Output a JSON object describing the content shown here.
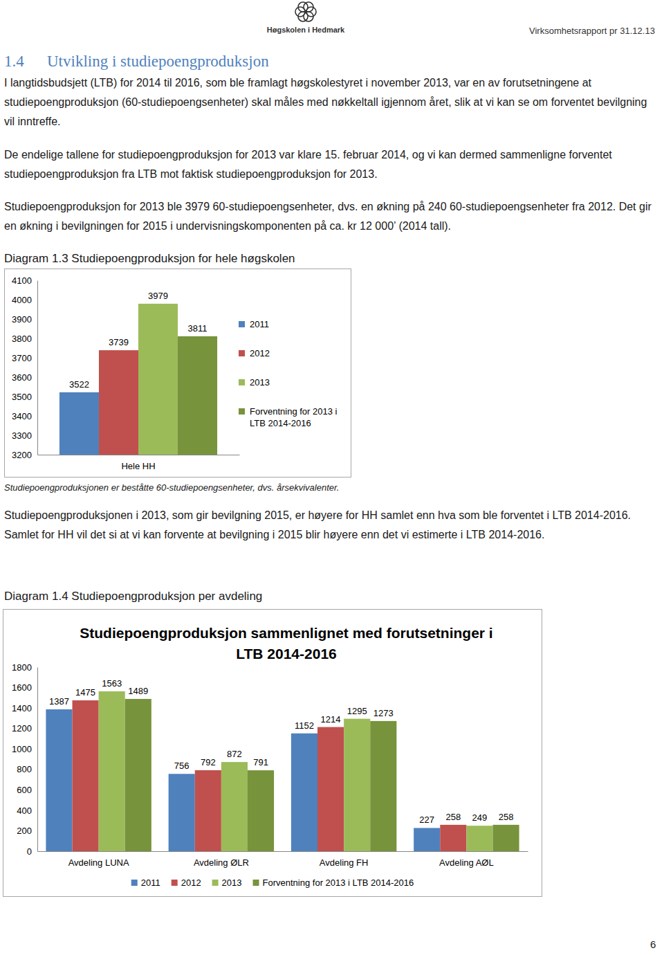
{
  "document": {
    "header": {
      "organization": "Høgskolen i Hedmark",
      "report": "Virksomhetsrapport pr 31.12.13"
    },
    "section": {
      "number": "1.4",
      "title": "Utvikling i studiepoengproduksjon"
    },
    "paragraphs": [
      "I langtidsbudsjett (LTB) for 2014 til 2016, som ble framlagt høgskolestyret i november 2013, var en av forutsetningene at studiepoengproduksjon (60-studiepoengsenheter) skal måles med nøkkeltall igjennom året, slik at vi kan se om forventet bevilgning vil inntreffe.",
      "De endelige tallene for studiepoengproduksjon for 2013 var klare 15. februar 2014, og vi kan dermed sammenligne forventet studiepoengproduksjon fra LTB mot faktisk studiepoengproduksjon for 2013.",
      "Studiepoengproduksjon for 2013 ble 3979 60-studiepoengsenheter, dvs. en økning på 240 60-studiepoengsenheter fra 2012. Det gir en økning i bevilgningen for 2015 i undervisningskomponenten på ca. kr 12 000’ (2014 tall).",
      "Studiepoengproduksjonen i 2013, som gir bevilgning 2015, er høyere for HH samlet enn hva som ble forventet i LTB 2014-2016. Samlet for HH vil det si at vi kan forvente at bevilgning i 2015 blir høyere enn det vi estimerte i LTB 2014-2016."
    ],
    "captions": [
      "Diagram 1.3 Studiepoengproduksjon for hele høgskolen",
      "Diagram 1.4 Studiepoengproduksjon per avdeling"
    ],
    "note": "Studiepoengproduksjonen er beståtte 60-studiepoengsenheter, dvs. årsekvivalenter.",
    "page_number": "6"
  },
  "chart_data": [
    {
      "type": "bar",
      "categories": [
        "Hele HH"
      ],
      "series": [
        {
          "name": "2011",
          "color": "#4f81bd",
          "values": [
            3522
          ]
        },
        {
          "name": "2012",
          "color": "#c0504d",
          "values": [
            3739
          ]
        },
        {
          "name": "2013",
          "color": "#9bbb59",
          "values": [
            3979
          ]
        },
        {
          "name": "Forventning for 2013 i LTB 2014-2016",
          "color": "#77933c",
          "values": [
            3811
          ]
        }
      ],
      "ylim": [
        3200,
        4100
      ],
      "yticks": [
        3200,
        3300,
        3400,
        3500,
        3600,
        3700,
        3800,
        3900,
        4000,
        4100
      ],
      "grid": false,
      "legend": "right",
      "data_labels": true
    },
    {
      "type": "bar",
      "title": "Studiepoengproduksjon sammenlignet med forutsetninger i LTB 2014-2016",
      "categories": [
        "Avdeling LUNA",
        "Avdeling ØLR",
        "Avdeling FH",
        "Avdeling AØL"
      ],
      "series": [
        {
          "name": "2011",
          "color": "#4f81bd",
          "values": [
            1387,
            756,
            1152,
            227
          ]
        },
        {
          "name": "2012",
          "color": "#c0504d",
          "values": [
            1475,
            792,
            1214,
            258
          ]
        },
        {
          "name": "2013",
          "color": "#9bbb59",
          "values": [
            1563,
            872,
            1295,
            249
          ]
        },
        {
          "name": "Forventning for 2013 i LTB 2014-2016",
          "color": "#77933c",
          "values": [
            1489,
            791,
            1273,
            258
          ]
        }
      ],
      "ylim": [
        0,
        1800
      ],
      "yticks": [
        0,
        200,
        400,
        600,
        800,
        1000,
        1200,
        1400,
        1600,
        1800
      ],
      "grid": false,
      "legend": "bottom",
      "data_labels": true
    }
  ]
}
